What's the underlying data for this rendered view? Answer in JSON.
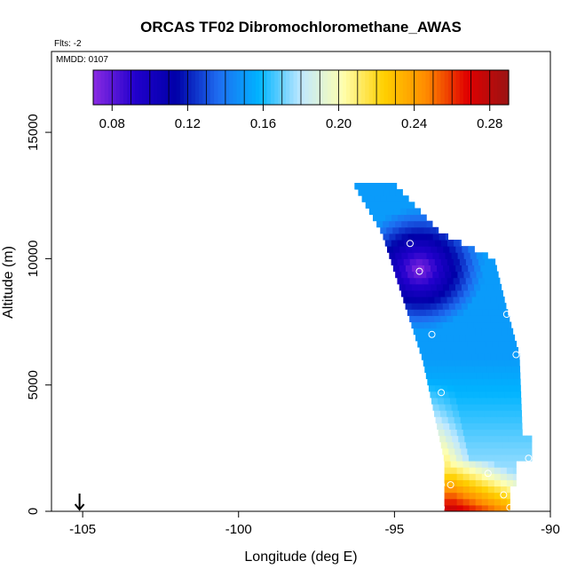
{
  "chart_data": {
    "type": "heatmap",
    "title": "ORCAS TF02 Dibromochloromethane_AWAS",
    "corner_notes": [
      "Flts: -2",
      "MMDD: 0107"
    ],
    "xlabel": "Longitude (deg E)",
    "ylabel": "Altitude (m)",
    "xlim": [
      -106,
      -90
    ],
    "ylim": [
      0,
      18200
    ],
    "xticks": [
      -105,
      -100,
      -95,
      -90
    ],
    "xtick_labels": [
      "-105",
      "-100",
      "-95",
      "-90"
    ],
    "yticks": [
      0,
      5000,
      10000,
      15000
    ],
    "ytick_labels": [
      "0",
      "5000",
      "10000",
      "15000"
    ],
    "colorbar": {
      "range": [
        0.07,
        0.29
      ],
      "ticks": [
        0.08,
        0.12,
        0.16,
        0.2,
        0.24,
        0.28
      ],
      "tick_labels": [
        "0.08",
        "0.12",
        "0.16",
        "0.20",
        "0.24",
        "0.28"
      ],
      "colors": [
        "#8a2be2",
        "#2200cc",
        "#0000a8",
        "#1e6cf0",
        "#00b4ff",
        "#bfe8ff",
        "#ffffb0",
        "#ffd000",
        "#ff8c00",
        "#e00000",
        "#9a1414"
      ]
    },
    "home_marker": {
      "longitude": -105.1,
      "altitude": 0,
      "label": "arrow"
    },
    "field": {
      "description": "value at (longitude, altitude) in curtain",
      "core": {
        "longitude": -94.2,
        "altitude": 9600,
        "value": 0.07
      },
      "surface_max": {
        "longitude": -93.2,
        "altitude": 300,
        "value": 0.28
      }
    },
    "sample_points": [
      {
        "longitude": -96.3,
        "altitude": 12600
      },
      {
        "longitude": -94.5,
        "altitude": 10600
      },
      {
        "longitude": -94.2,
        "altitude": 9500
      },
      {
        "longitude": -92.0,
        "altitude": 10400
      },
      {
        "longitude": -91.4,
        "altitude": 7800
      },
      {
        "longitude": -93.8,
        "altitude": 7000
      },
      {
        "longitude": -91.1,
        "altitude": 6200
      },
      {
        "longitude": -93.5,
        "altitude": 4700
      },
      {
        "longitude": -93.6,
        "altitude": 2400
      },
      {
        "longitude": -90.7,
        "altitude": 2100
      },
      {
        "longitude": -92.0,
        "altitude": 1500
      },
      {
        "longitude": -93.5,
        "altitude": 1050
      },
      {
        "longitude": -93.2,
        "altitude": 1050
      },
      {
        "longitude": -91.5,
        "altitude": 650
      },
      {
        "longitude": -93.5,
        "altitude": 150
      },
      {
        "longitude": -91.3,
        "altitude": 150
      }
    ]
  }
}
